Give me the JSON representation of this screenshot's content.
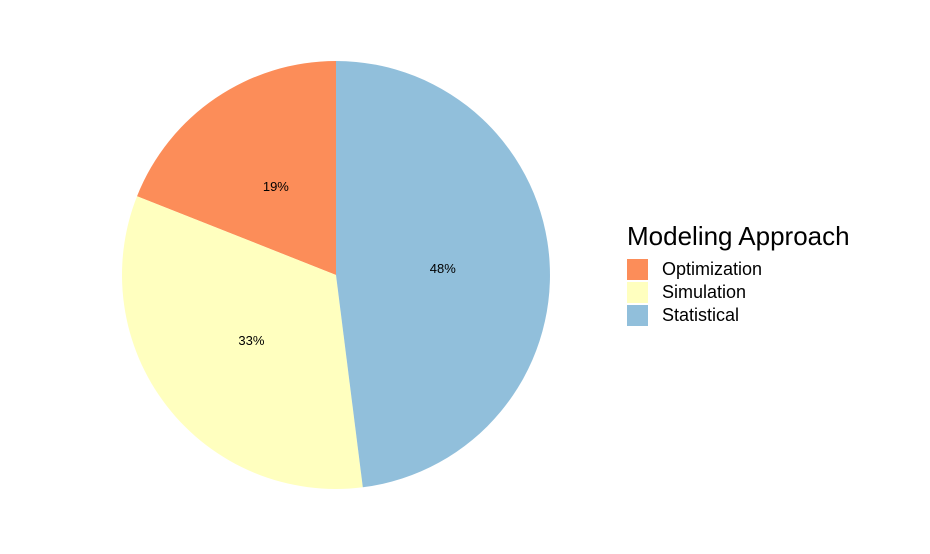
{
  "chart_data": {
    "type": "pie",
    "categories": [
      "Optimization",
      "Simulation",
      "Statistical"
    ],
    "values": [
      19,
      33,
      48
    ],
    "labels": [
      "19%",
      "33%",
      "48%"
    ],
    "colors": [
      "#FC8D59",
      "#FFFFBF",
      "#91BFDB"
    ],
    "start": "12 o'clock",
    "direction": "counterclockwise",
    "legend": {
      "title": "Modeling Approach",
      "position": "right"
    }
  }
}
